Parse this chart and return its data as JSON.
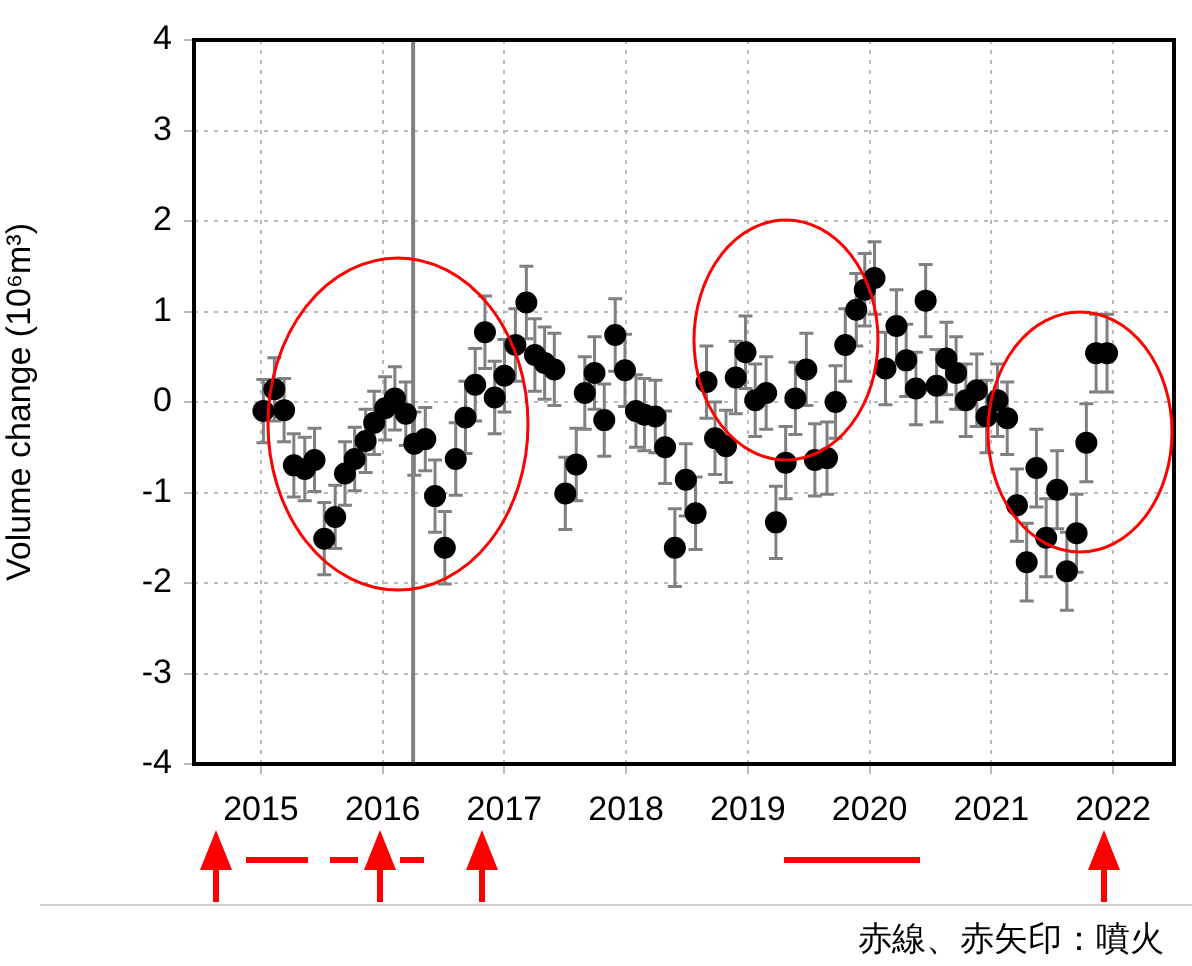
{
  "chart_data": {
    "type": "scatter",
    "ylabel": "Volume change (10⁶m³)",
    "xlim": [
      2014.45,
      2022.5
    ],
    "xticks": [
      2015,
      2016,
      2017,
      2018,
      2019,
      2020,
      2021,
      2022
    ],
    "ylim": [
      -4,
      4
    ],
    "yticks": [
      -4,
      -3,
      -2,
      -1,
      0,
      1,
      2,
      3,
      4
    ],
    "grid": true,
    "legend": false,
    "marker": "circle",
    "series": [
      {
        "color": "#000000",
        "x": [
          2015.02,
          2015.11,
          2015.19,
          2015.27,
          2015.36,
          2015.44,
          2015.52,
          2015.61,
          2015.69,
          2015.77,
          2015.86,
          2015.93,
          2016.02,
          2016.1,
          2016.19,
          2016.26,
          2016.35,
          2016.43,
          2016.51,
          2016.6,
          2016.68,
          2016.76,
          2016.84,
          2016.92,
          2017.0,
          2017.09,
          2017.18,
          2017.25,
          2017.33,
          2017.41,
          2017.5,
          2017.59,
          2017.66,
          2017.74,
          2017.82,
          2017.91,
          2017.99,
          2018.08,
          2018.15,
          2018.24,
          2018.32,
          2018.4,
          2018.49,
          2018.57,
          2018.66,
          2018.73,
          2018.82,
          2018.9,
          2018.98,
          2019.06,
          2019.15,
          2019.23,
          2019.31,
          2019.39,
          2019.48,
          2019.55,
          2019.65,
          2019.72,
          2019.8,
          2019.89,
          2019.96,
          2020.04,
          2020.13,
          2020.22,
          2020.3,
          2020.38,
          2020.46,
          2020.55,
          2020.63,
          2020.71,
          2020.79,
          2020.88,
          2020.96,
          2021.05,
          2021.13,
          2021.21,
          2021.29,
          2021.37,
          2021.45,
          2021.54,
          2021.62,
          2021.7,
          2021.78,
          2021.86,
          2021.95
        ],
        "values": [
          -0.1,
          0.14,
          -0.09,
          -0.7,
          -0.74,
          -0.64,
          -1.51,
          -1.27,
          -0.79,
          -0.63,
          -0.43,
          -0.23,
          -0.07,
          0.04,
          -0.13,
          -0.46,
          -0.41,
          -1.04,
          -1.61,
          -0.63,
          -0.17,
          0.19,
          0.77,
          0.05,
          0.29,
          0.63,
          1.1,
          0.52,
          0.43,
          0.36,
          -1.01,
          -0.69,
          0.1,
          0.32,
          -0.2,
          0.74,
          0.35,
          -0.1,
          -0.14,
          -0.16,
          -0.5,
          -1.61,
          -0.86,
          -1.23,
          0.22,
          -0.4,
          -0.49,
          0.27,
          0.55,
          0.02,
          0.1,
          -1.33,
          -0.67,
          0.04,
          0.36,
          -0.64,
          -0.62,
          0.0,
          0.63,
          1.02,
          1.24,
          1.37,
          0.37,
          0.84,
          0.46,
          0.15,
          1.12,
          0.18,
          0.48,
          0.32,
          0.02,
          0.13,
          -0.16,
          0.02,
          -0.18,
          -1.14,
          -1.77,
          -0.73,
          -1.5,
          -0.97,
          -1.87,
          -1.45,
          -0.45,
          0.54,
          0.54
        ],
        "errors": [
          0.35,
          0.35,
          0.35,
          0.35,
          0.35,
          0.35,
          0.4,
          0.35,
          0.35,
          0.35,
          0.35,
          0.35,
          0.35,
          0.35,
          0.35,
          0.35,
          0.35,
          0.4,
          0.4,
          0.4,
          0.4,
          0.4,
          0.4,
          0.4,
          0.4,
          0.4,
          0.4,
          0.4,
          0.4,
          0.4,
          0.4,
          0.4,
          0.4,
          0.4,
          0.4,
          0.4,
          0.4,
          0.4,
          0.4,
          0.4,
          0.4,
          0.43,
          0.4,
          0.4,
          0.4,
          0.4,
          0.4,
          0.4,
          0.4,
          0.4,
          0.4,
          0.4,
          0.4,
          0.4,
          0.4,
          0.4,
          0.4,
          0.4,
          0.4,
          0.4,
          0.4,
          0.4,
          0.4,
          0.4,
          0.4,
          0.4,
          0.4,
          0.4,
          0.4,
          0.4,
          0.4,
          0.4,
          0.4,
          0.4,
          0.4,
          0.4,
          0.43,
          0.43,
          0.43,
          0.43,
          0.43,
          0.43,
          0.43,
          0.43,
          0.43
        ]
      }
    ],
    "ref_lines": [
      {
        "axis": "x",
        "value": 2016.25,
        "color": "#808080"
      }
    ],
    "annotations": [
      "赤線、赤矢印：噴火"
    ]
  }
}
